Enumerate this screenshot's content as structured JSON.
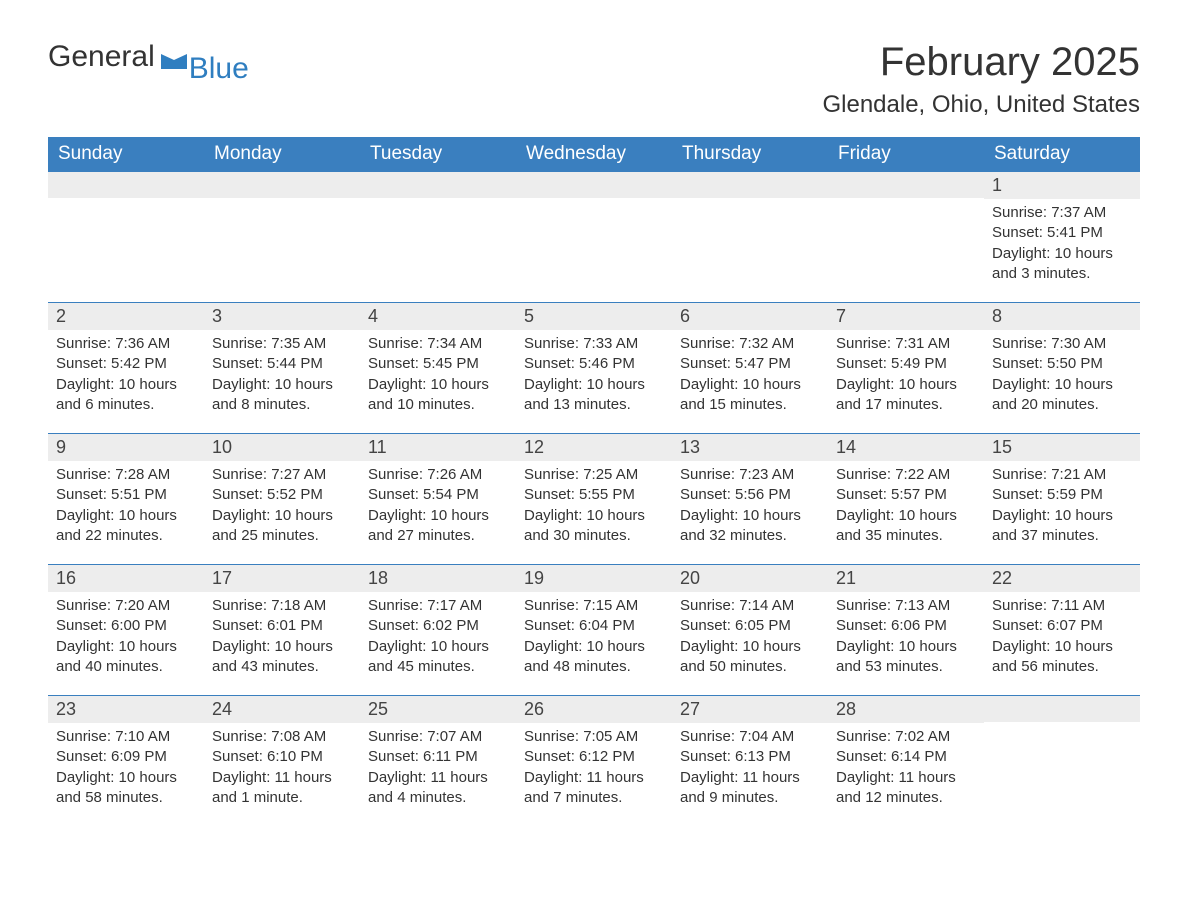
{
  "logo": {
    "text_main": "General",
    "text_sub": "Blue",
    "brand_color": "#2f7ec0",
    "text_color": "#333333"
  },
  "header": {
    "month_title": "February 2025",
    "location": "Glendale, Ohio, United States"
  },
  "style": {
    "header_bg": "#3a7fbf",
    "header_text": "#ffffff",
    "daynum_bg": "#ededed",
    "body_text": "#333333",
    "rule_color": "#3a7fbf",
    "page_bg": "#ffffff",
    "weekday_fontsize": 19,
    "daynum_fontsize": 18,
    "body_fontsize": 15,
    "title_fontsize": 40,
    "location_fontsize": 24
  },
  "weekdays": [
    "Sunday",
    "Monday",
    "Tuesday",
    "Wednesday",
    "Thursday",
    "Friday",
    "Saturday"
  ],
  "weeks": [
    [
      {
        "num": "",
        "sunrise": "",
        "sunset": "",
        "daylight": ""
      },
      {
        "num": "",
        "sunrise": "",
        "sunset": "",
        "daylight": ""
      },
      {
        "num": "",
        "sunrise": "",
        "sunset": "",
        "daylight": ""
      },
      {
        "num": "",
        "sunrise": "",
        "sunset": "",
        "daylight": ""
      },
      {
        "num": "",
        "sunrise": "",
        "sunset": "",
        "daylight": ""
      },
      {
        "num": "",
        "sunrise": "",
        "sunset": "",
        "daylight": ""
      },
      {
        "num": "1",
        "sunrise": "Sunrise: 7:37 AM",
        "sunset": "Sunset: 5:41 PM",
        "daylight": "Daylight: 10 hours and 3 minutes."
      }
    ],
    [
      {
        "num": "2",
        "sunrise": "Sunrise: 7:36 AM",
        "sunset": "Sunset: 5:42 PM",
        "daylight": "Daylight: 10 hours and 6 minutes."
      },
      {
        "num": "3",
        "sunrise": "Sunrise: 7:35 AM",
        "sunset": "Sunset: 5:44 PM",
        "daylight": "Daylight: 10 hours and 8 minutes."
      },
      {
        "num": "4",
        "sunrise": "Sunrise: 7:34 AM",
        "sunset": "Sunset: 5:45 PM",
        "daylight": "Daylight: 10 hours and 10 minutes."
      },
      {
        "num": "5",
        "sunrise": "Sunrise: 7:33 AM",
        "sunset": "Sunset: 5:46 PM",
        "daylight": "Daylight: 10 hours and 13 minutes."
      },
      {
        "num": "6",
        "sunrise": "Sunrise: 7:32 AM",
        "sunset": "Sunset: 5:47 PM",
        "daylight": "Daylight: 10 hours and 15 minutes."
      },
      {
        "num": "7",
        "sunrise": "Sunrise: 7:31 AM",
        "sunset": "Sunset: 5:49 PM",
        "daylight": "Daylight: 10 hours and 17 minutes."
      },
      {
        "num": "8",
        "sunrise": "Sunrise: 7:30 AM",
        "sunset": "Sunset: 5:50 PM",
        "daylight": "Daylight: 10 hours and 20 minutes."
      }
    ],
    [
      {
        "num": "9",
        "sunrise": "Sunrise: 7:28 AM",
        "sunset": "Sunset: 5:51 PM",
        "daylight": "Daylight: 10 hours and 22 minutes."
      },
      {
        "num": "10",
        "sunrise": "Sunrise: 7:27 AM",
        "sunset": "Sunset: 5:52 PM",
        "daylight": "Daylight: 10 hours and 25 minutes."
      },
      {
        "num": "11",
        "sunrise": "Sunrise: 7:26 AM",
        "sunset": "Sunset: 5:54 PM",
        "daylight": "Daylight: 10 hours and 27 minutes."
      },
      {
        "num": "12",
        "sunrise": "Sunrise: 7:25 AM",
        "sunset": "Sunset: 5:55 PM",
        "daylight": "Daylight: 10 hours and 30 minutes."
      },
      {
        "num": "13",
        "sunrise": "Sunrise: 7:23 AM",
        "sunset": "Sunset: 5:56 PM",
        "daylight": "Daylight: 10 hours and 32 minutes."
      },
      {
        "num": "14",
        "sunrise": "Sunrise: 7:22 AM",
        "sunset": "Sunset: 5:57 PM",
        "daylight": "Daylight: 10 hours and 35 minutes."
      },
      {
        "num": "15",
        "sunrise": "Sunrise: 7:21 AM",
        "sunset": "Sunset: 5:59 PM",
        "daylight": "Daylight: 10 hours and 37 minutes."
      }
    ],
    [
      {
        "num": "16",
        "sunrise": "Sunrise: 7:20 AM",
        "sunset": "Sunset: 6:00 PM",
        "daylight": "Daylight: 10 hours and 40 minutes."
      },
      {
        "num": "17",
        "sunrise": "Sunrise: 7:18 AM",
        "sunset": "Sunset: 6:01 PM",
        "daylight": "Daylight: 10 hours and 43 minutes."
      },
      {
        "num": "18",
        "sunrise": "Sunrise: 7:17 AM",
        "sunset": "Sunset: 6:02 PM",
        "daylight": "Daylight: 10 hours and 45 minutes."
      },
      {
        "num": "19",
        "sunrise": "Sunrise: 7:15 AM",
        "sunset": "Sunset: 6:04 PM",
        "daylight": "Daylight: 10 hours and 48 minutes."
      },
      {
        "num": "20",
        "sunrise": "Sunrise: 7:14 AM",
        "sunset": "Sunset: 6:05 PM",
        "daylight": "Daylight: 10 hours and 50 minutes."
      },
      {
        "num": "21",
        "sunrise": "Sunrise: 7:13 AM",
        "sunset": "Sunset: 6:06 PM",
        "daylight": "Daylight: 10 hours and 53 minutes."
      },
      {
        "num": "22",
        "sunrise": "Sunrise: 7:11 AM",
        "sunset": "Sunset: 6:07 PM",
        "daylight": "Daylight: 10 hours and 56 minutes."
      }
    ],
    [
      {
        "num": "23",
        "sunrise": "Sunrise: 7:10 AM",
        "sunset": "Sunset: 6:09 PM",
        "daylight": "Daylight: 10 hours and 58 minutes."
      },
      {
        "num": "24",
        "sunrise": "Sunrise: 7:08 AM",
        "sunset": "Sunset: 6:10 PM",
        "daylight": "Daylight: 11 hours and 1 minute."
      },
      {
        "num": "25",
        "sunrise": "Sunrise: 7:07 AM",
        "sunset": "Sunset: 6:11 PM",
        "daylight": "Daylight: 11 hours and 4 minutes."
      },
      {
        "num": "26",
        "sunrise": "Sunrise: 7:05 AM",
        "sunset": "Sunset: 6:12 PM",
        "daylight": "Daylight: 11 hours and 7 minutes."
      },
      {
        "num": "27",
        "sunrise": "Sunrise: 7:04 AM",
        "sunset": "Sunset: 6:13 PM",
        "daylight": "Daylight: 11 hours and 9 minutes."
      },
      {
        "num": "28",
        "sunrise": "Sunrise: 7:02 AM",
        "sunset": "Sunset: 6:14 PM",
        "daylight": "Daylight: 11 hours and 12 minutes."
      },
      {
        "num": "",
        "sunrise": "",
        "sunset": "",
        "daylight": ""
      }
    ]
  ]
}
